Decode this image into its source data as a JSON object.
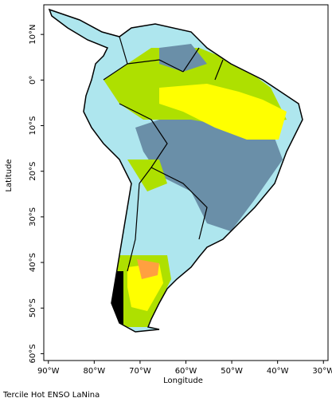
{
  "map": {
    "caption": "Tercile Hot ENSO LaNina",
    "x_axis": {
      "label": "Longitude",
      "lim": [
        -91,
        -29
      ],
      "ticks": [
        {
          "value": -90,
          "label": "90°W"
        },
        {
          "value": -80,
          "label": "80°W"
        },
        {
          "value": -70,
          "label": "70°W"
        },
        {
          "value": -60,
          "label": "60°W"
        },
        {
          "value": -50,
          "label": "50°W"
        },
        {
          "value": -40,
          "label": "40°W"
        },
        {
          "value": -30,
          "label": "30°W"
        }
      ]
    },
    "y_axis": {
      "label": "Latitude",
      "lim": [
        -61.5,
        16.5
      ],
      "ticks": [
        {
          "value": 10,
          "label": "10°N"
        },
        {
          "value": 0,
          "label": "0°"
        },
        {
          "value": -10,
          "label": "10°S"
        },
        {
          "value": -20,
          "label": "20°S"
        },
        {
          "value": -30,
          "label": "30°S"
        },
        {
          "value": -40,
          "label": "40°S"
        },
        {
          "value": -50,
          "label": "50°S"
        },
        {
          "value": -60,
          "label": "60°S"
        }
      ]
    }
  }
}
